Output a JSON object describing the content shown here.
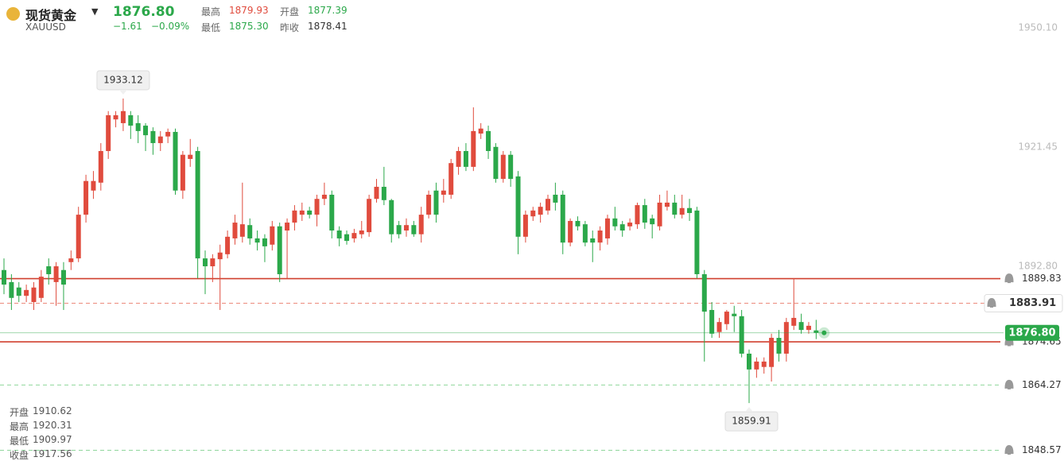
{
  "header": {
    "title": "现货黄金",
    "symbol": "XAUUSD",
    "price": "1876.80",
    "change": "−1.61",
    "change_pct": "−0.09%",
    "stats": [
      {
        "label": "最高",
        "value": "1879.93",
        "color": "#e04b3d"
      },
      {
        "label": "开盘",
        "value": "1877.39",
        "color": "#2ba84a"
      },
      {
        "label": "最低",
        "value": "1875.30",
        "color": "#2ba84a"
      },
      {
        "label": "昨收",
        "value": "1878.41",
        "color": "#333333"
      }
    ]
  },
  "hover_ohlc": [
    {
      "label": "开盘",
      "value": "1910.62"
    },
    {
      "label": "最高",
      "value": "1920.31"
    },
    {
      "label": "最低",
      "value": "1909.97"
    },
    {
      "label": "收盘",
      "value": "1917.56"
    }
  ],
  "chart_data": {
    "type": "candlestick",
    "up_color": "#e04b3d",
    "down_color": "#2ba84a",
    "ylim": [
      1846.0,
      1956.8
    ],
    "yticks": [
      {
        "value": 1950.1,
        "label": "1950.10"
      },
      1921.45,
      {
        "value": 1892.8,
        "label": "1892.80"
      }
    ],
    "open": [
      1891.9,
      1889.0,
      1887.7,
      1885.7,
      1884.2,
      1885.2,
      1892.8,
      1889.0,
      1891.9,
      1893.8,
      1894.7,
      1905.2,
      1911.0,
      1912.9,
      1920.5,
      1928.1,
      1927.2,
      1929.1,
      1927.2,
      1926.6,
      1925.3,
      1922.4,
      1924.0,
      1925.1,
      1911.0,
      1918.6,
      1920.5,
      1894.7,
      1892.8,
      1894.5,
      1895.7,
      1899.5,
      1899.9,
      1902.7,
      1899.5,
      1899.5,
      1898.0,
      1902.4,
      1901.4,
      1903.3,
      1905.2,
      1906.2,
      1905.2,
      1909.0,
      1910.0,
      1901.4,
      1900.5,
      1899.5,
      1900.5,
      1901.0,
      1909.0,
      1911.9,
      1908.7,
      1902.7,
      1901.4,
      1902.7,
      1900.5,
      1905.2,
      1911.0,
      1910.0,
      1910.0,
      1916.7,
      1920.5,
      1916.7,
      1924.7,
      1925.3,
      1921.5,
      1913.8,
      1919.6,
      1914.4,
      1899.9,
      1904.8,
      1905.2,
      1906.2,
      1910.0,
      1910.0,
      1898.5,
      1903.7,
      1902.9,
      1899.5,
      1898.5,
      1899.5,
      1904.3,
      1902.9,
      1902.4,
      1902.9,
      1907.5,
      1904.3,
      1902.4,
      1907.1,
      1908.1,
      1905.2,
      1906.8,
      1906.2,
      1890.9,
      1882.3,
      1877.0,
      1878.9,
      1881.4,
      1880.8,
      1871.8,
      1868.0,
      1868.6,
      1868.6,
      1875.6,
      1871.8,
      1878.5,
      1879.4,
      1877.5,
      1877.39
    ],
    "high": [
      1894.7,
      1890.9,
      1889.0,
      1888.4,
      1889.0,
      1891.9,
      1894.7,
      1893.8,
      1893.8,
      1896.6,
      1907.1,
      1914.8,
      1915.7,
      1922.4,
      1930.1,
      1930.1,
      1933.12,
      1930.1,
      1929.1,
      1927.2,
      1926.2,
      1925.3,
      1925.9,
      1925.9,
      1920.5,
      1923.4,
      1921.5,
      1896.6,
      1895.7,
      1898.0,
      1901.4,
      1905.2,
      1912.9,
      1904.3,
      1901.4,
      1900.5,
      1903.7,
      1903.3,
      1904.3,
      1907.5,
      1908.1,
      1907.1,
      1910.0,
      1912.9,
      1911.0,
      1902.4,
      1901.4,
      1901.8,
      1903.7,
      1910.0,
      1913.8,
      1916.7,
      1909.0,
      1903.7,
      1904.3,
      1903.7,
      1907.1,
      1911.0,
      1912.9,
      1913.8,
      1918.6,
      1921.5,
      1922.4,
      1931.0,
      1927.2,
      1926.6,
      1922.4,
      1920.5,
      1920.5,
      1915.7,
      1906.2,
      1907.1,
      1908.1,
      1910.0,
      1912.9,
      1911.0,
      1904.3,
      1904.8,
      1903.7,
      1901.4,
      1902.4,
      1905.2,
      1907.1,
      1903.7,
      1904.3,
      1908.1,
      1909.0,
      1905.2,
      1910.0,
      1911.0,
      1910.0,
      1910.0,
      1909.0,
      1907.1,
      1891.9,
      1884.2,
      1880.4,
      1882.3,
      1883.3,
      1882.3,
      1872.8,
      1870.9,
      1870.9,
      1876.6,
      1877.5,
      1880.4,
      1889.9,
      1881.4,
      1879.4,
      1879.93
    ],
    "low": [
      1886.1,
      1882.3,
      1884.2,
      1884.2,
      1882.3,
      1884.2,
      1888.4,
      1883.3,
      1882.3,
      1891.9,
      1893.8,
      1903.3,
      1909.0,
      1911.0,
      1918.6,
      1926.2,
      1925.3,
      1923.4,
      1922.4,
      1920.5,
      1919.6,
      1920.5,
      1922.4,
      1910.0,
      1909.0,
      1916.7,
      1889.9,
      1886.1,
      1889.0,
      1882.3,
      1894.7,
      1898.0,
      1898.5,
      1898.0,
      1896.6,
      1893.8,
      1896.6,
      1889.0,
      1889.9,
      1901.4,
      1903.7,
      1904.3,
      1902.4,
      1907.5,
      1899.5,
      1897.6,
      1898.0,
      1898.5,
      1899.5,
      1899.9,
      1908.1,
      1907.5,
      1898.5,
      1899.5,
      1899.9,
      1899.9,
      1898.5,
      1904.3,
      1903.3,
      1908.1,
      1909.0,
      1914.8,
      1915.7,
      1915.7,
      1923.4,
      1918.6,
      1912.9,
      1912.9,
      1911.9,
      1895.7,
      1898.5,
      1903.7,
      1903.3,
      1905.2,
      1906.2,
      1895.7,
      1897.6,
      1901.4,
      1897.6,
      1893.8,
      1896.6,
      1898.0,
      1901.4,
      1899.9,
      1901.4,
      1901.8,
      1901.8,
      1899.5,
      1901.4,
      1906.2,
      1904.3,
      1904.3,
      1903.7,
      1889.9,
      1869.9,
      1875.6,
      1875.6,
      1877.5,
      1877.0,
      1870.9,
      1859.91,
      1866.0,
      1867.0,
      1865.1,
      1869.9,
      1869.9,
      1877.5,
      1876.6,
      1876.6,
      1875.3
    ],
    "close": [
      1888.4,
      1885.2,
      1885.7,
      1887.1,
      1887.7,
      1890.3,
      1890.9,
      1892.8,
      1888.4,
      1894.7,
      1905.2,
      1913.3,
      1913.3,
      1920.5,
      1929.1,
      1929.1,
      1930.1,
      1926.6,
      1925.3,
      1924.3,
      1922.4,
      1924.0,
      1925.1,
      1911.0,
      1919.6,
      1919.6,
      1894.7,
      1892.8,
      1894.7,
      1896.1,
      1899.9,
      1903.3,
      1902.9,
      1899.5,
      1898.5,
      1897.6,
      1902.4,
      1890.9,
      1903.3,
      1906.2,
      1906.2,
      1905.2,
      1909.0,
      1910.0,
      1901.4,
      1899.5,
      1898.9,
      1900.8,
      1901.4,
      1909.0,
      1911.9,
      1908.7,
      1900.5,
      1900.5,
      1902.7,
      1900.5,
      1905.2,
      1910.0,
      1905.2,
      1911.0,
      1917.6,
      1920.5,
      1916.7,
      1925.3,
      1925.9,
      1920.5,
      1913.8,
      1919.6,
      1913.8,
      1899.9,
      1905.2,
      1906.2,
      1907.1,
      1909.0,
      1908.1,
      1898.5,
      1903.7,
      1902.4,
      1898.5,
      1898.5,
      1901.4,
      1904.3,
      1902.4,
      1901.4,
      1903.3,
      1907.5,
      1903.3,
      1902.9,
      1908.1,
      1908.1,
      1905.2,
      1906.8,
      1905.6,
      1890.9,
      1881.9,
      1876.6,
      1879.4,
      1881.9,
      1880.8,
      1871.8,
      1868.0,
      1869.9,
      1869.9,
      1875.6,
      1871.8,
      1879.4,
      1880.4,
      1877.5,
      1878.5,
      1876.8
    ],
    "levels": [
      {
        "value": 1889.83,
        "color": "#d0402f",
        "dash": false,
        "boxed": false
      },
      {
        "value": 1883.91,
        "color": "#ec8a7c",
        "dash": true,
        "boxed": true
      },
      {
        "value": 1874.65,
        "color": "#d0402f",
        "dash": false,
        "boxed": false
      },
      {
        "value": 1864.27,
        "color": "#8fd69b",
        "dash": true,
        "boxed": false
      },
      {
        "value": 1848.57,
        "color": "#8fd69b",
        "dash": true,
        "boxed": false
      }
    ],
    "last_price": {
      "value": 1876.8,
      "label": "1876.80",
      "color": "#2ba84a"
    },
    "high_marker": 1933.12,
    "low_marker": 1859.91
  }
}
